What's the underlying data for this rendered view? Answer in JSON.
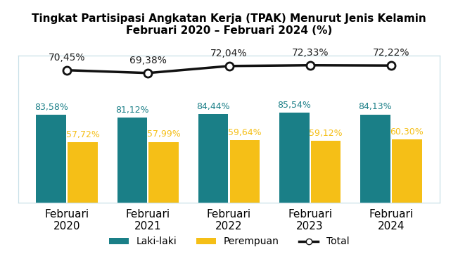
{
  "chart_data": {
    "type": "bar",
    "title": "Tingkat Partisipasi Angkatan Kerja (TPAK) Menurut Jenis Kelamin\nFebruari 2020 – Februari 2024 (%)",
    "categories": [
      "Februari\n2020",
      "Februari\n2021",
      "Februari\n2022",
      "Februari\n2023",
      "Februari\n2024"
    ],
    "series": [
      {
        "name": "Laki-laki",
        "type": "bar",
        "color": "#1a7f87",
        "values": [
          83.58,
          81.12,
          84.44,
          85.54,
          84.13
        ],
        "value_labels": [
          "83,58%",
          "81,12%",
          "84,44%",
          "85,54%",
          "84,13%"
        ]
      },
      {
        "name": "Perempuan",
        "type": "bar",
        "color": "#f5bf17",
        "values": [
          57.72,
          57.99,
          59.64,
          59.12,
          60.3
        ],
        "value_labels": [
          "57,72%",
          "57,99%",
          "59,64%",
          "59,12%",
          "60,30%"
        ]
      },
      {
        "name": "Total",
        "type": "line",
        "axis": "y2",
        "color": "#111111",
        "marker": "o",
        "line_style": "solid",
        "values": [
          70.45,
          69.38,
          72.04,
          72.33,
          72.22
        ],
        "value_labels": [
          "70,45%",
          "69,38%",
          "72,04%",
          "72,33%",
          "72,22%"
        ]
      }
    ],
    "ylim": [
      0,
      140
    ],
    "y2lim": [
      20,
      76
    ],
    "data_labels": true,
    "tick_labels": "x",
    "grid": false,
    "legend": "upper center"
  }
}
